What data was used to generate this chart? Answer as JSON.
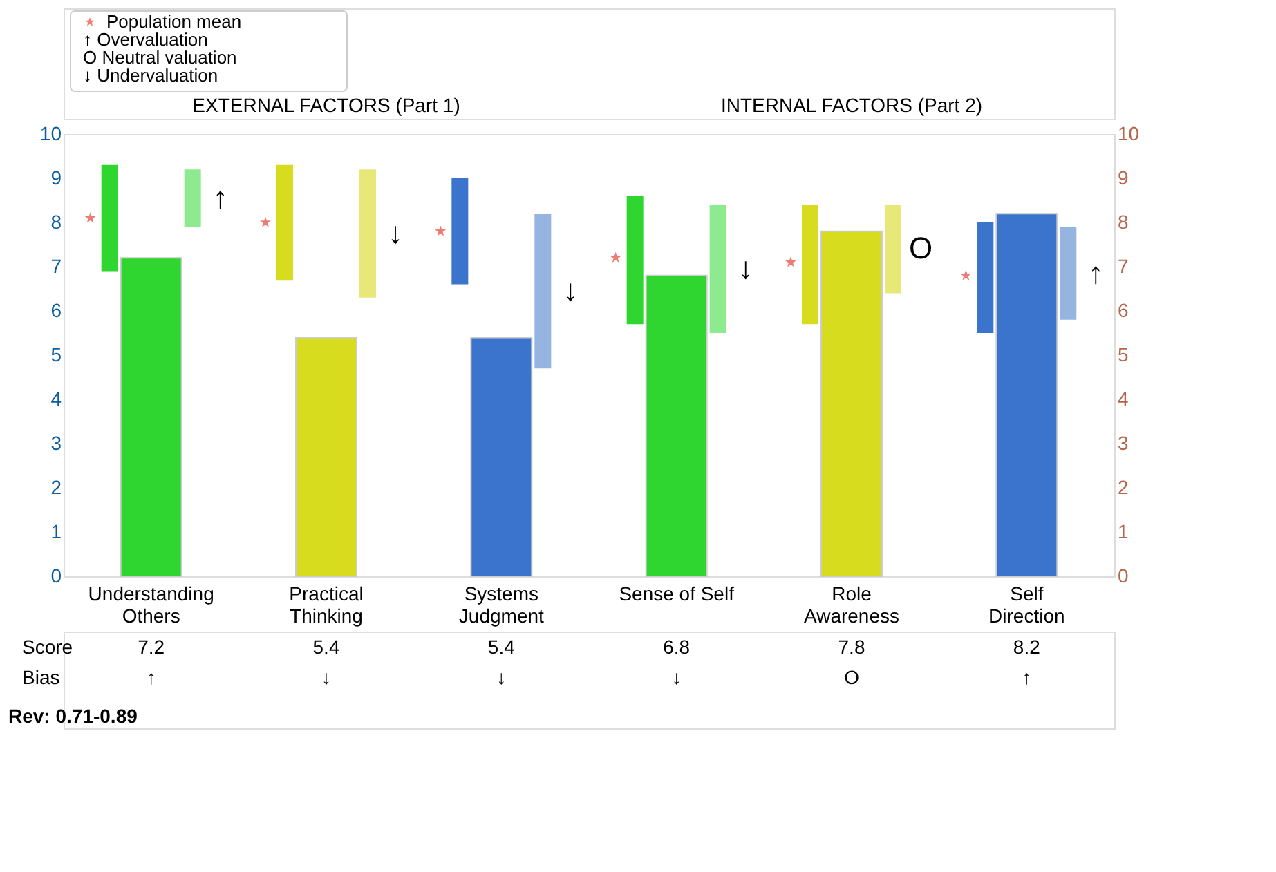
{
  "chart_data": {
    "type": "bar",
    "categories": [
      "Understanding Others",
      "Practical Thinking",
      "Systems Judgment",
      "Sense of Self",
      "Role Awareness",
      "Self Direction"
    ],
    "series": [
      {
        "colors": [
          "#2fd62f",
          "#d8dc1e",
          "#3a74cc",
          "#2fd62f",
          "#d8dc1e",
          "#3a74cc"
        ],
        "base": [
          6.9,
          6.7,
          6.6,
          5.7,
          5.7,
          5.5
        ],
        "values": [
          2.4,
          2.6,
          2.4,
          2.9,
          2.7,
          2.5
        ]
      },
      {
        "colors": [
          "#2fd62f",
          "#d8dc1e",
          "#3a74cc",
          "#2fd62f",
          "#d8dc1e",
          "#3a74cc"
        ],
        "values": [
          7.2,
          5.4,
          5.4,
          6.8,
          7.8,
          8.2
        ],
        "value_labels": [
          "7.2",
          "5.4",
          "5.4",
          "6.8",
          "7.8",
          "8.2"
        ]
      },
      {
        "colors": [
          "#8eea8e",
          "#e8e878",
          "#96b4e0",
          "#8eea8e",
          "#e8e878",
          "#96b4e0"
        ],
        "base": [
          7.9,
          6.3,
          4.7,
          5.5,
          6.4,
          5.8
        ],
        "values": [
          1.3,
          2.9,
          3.5,
          2.9,
          2.0,
          2.1
        ]
      },
      {
        "type": "scatter",
        "name": "Population mean",
        "color": "#e8433b",
        "marker": "star",
        "values": [
          8.1,
          8.0,
          7.8,
          7.2,
          7.1,
          6.8
        ]
      }
    ],
    "ylim": [
      0,
      10
    ],
    "yticks": [
      0,
      1,
      2,
      3,
      4,
      5,
      6,
      7,
      8,
      9,
      10
    ],
    "y2lim": [
      0,
      10
    ],
    "y2ticks": [
      0,
      1,
      2,
      3,
      4,
      5,
      6,
      7,
      8,
      9,
      10
    ],
    "legend": "top left",
    "annotations": [
      "EXTERNAL FACTORS (Part 1)",
      "INTERNAL FACTORS (Part 2)",
      "Score",
      "Bias",
      "Rev: 0.71-0.89",
      "↑ Overvaluation",
      "O Neutral valuation",
      "↓ Undervaluation",
      "↑",
      "↓",
      "↓",
      "↓",
      "O",
      "↑"
    ]
  }
}
